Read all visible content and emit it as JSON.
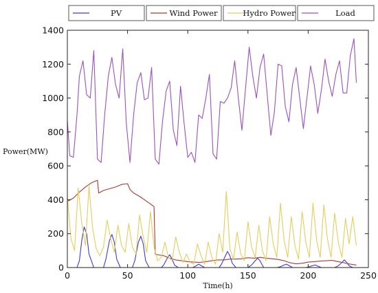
{
  "chart_data": {
    "type": "line",
    "title": "",
    "xlabel": "Time(h)",
    "ylabel": "Power(MW)",
    "xlim": [
      0,
      250
    ],
    "ylim": [
      0,
      1400
    ],
    "xticks": [
      0,
      50,
      100,
      150,
      200,
      250
    ],
    "yticks": [
      0,
      200,
      400,
      600,
      800,
      1000,
      1200,
      1400
    ],
    "legend_position": "top",
    "grid": false,
    "series": [
      {
        "name": "PV",
        "color": "#3a3ad6",
        "x": [
          0,
          8,
          10,
          12,
          14,
          16,
          18,
          22,
          30,
          32,
          35,
          37,
          39,
          41,
          44,
          54,
          56,
          59,
          61,
          63,
          65,
          68,
          78,
          80,
          83,
          85,
          87,
          89,
          92,
          104,
          107,
          109,
          111,
          114,
          126,
          128,
          131,
          133,
          135,
          137,
          140,
          150,
          153,
          156,
          158,
          160,
          163,
          174,
          177,
          180,
          182,
          184,
          187,
          198,
          201,
          204,
          206,
          208,
          211,
          222,
          225,
          228,
          230,
          232,
          234,
          237,
          240
        ],
        "y": [
          0,
          0,
          40,
          160,
          240,
          200,
          80,
          0,
          0,
          50,
          160,
          195,
          150,
          50,
          0,
          0,
          40,
          150,
          185,
          140,
          40,
          0,
          0,
          15,
          55,
          75,
          50,
          15,
          0,
          0,
          10,
          20,
          12,
          0,
          0,
          20,
          65,
          95,
          70,
          25,
          0,
          0,
          15,
          40,
          55,
          40,
          0,
          0,
          5,
          15,
          20,
          12,
          0,
          0,
          5,
          12,
          15,
          8,
          0,
          0,
          10,
          30,
          45,
          30,
          10,
          0,
          0
        ]
      },
      {
        "name": "Wind Power",
        "color": "#a83a2e",
        "x": [
          0,
          5,
          10,
          15,
          20,
          25,
          26,
          30,
          35,
          40,
          45,
          50,
          52,
          55,
          60,
          65,
          70,
          72,
          73,
          75,
          80,
          85,
          90,
          95,
          100,
          105,
          110,
          115,
          120,
          125,
          130,
          135,
          140,
          145,
          150,
          155,
          160,
          165,
          170,
          175,
          180,
          185,
          190,
          195,
          200,
          205,
          210,
          215,
          220,
          225,
          230,
          235,
          240
        ],
        "y": [
          390,
          410,
          445,
          475,
          500,
          515,
          440,
          455,
          465,
          475,
          490,
          495,
          460,
          440,
          420,
          395,
          370,
          360,
          80,
          75,
          70,
          55,
          45,
          40,
          35,
          32,
          30,
          35,
          40,
          45,
          45,
          50,
          50,
          52,
          58,
          55,
          60,
          55,
          52,
          48,
          40,
          28,
          22,
          25,
          32,
          35,
          38,
          40,
          42,
          35,
          28,
          20,
          15
        ]
      },
      {
        "name": "Hydro Power",
        "color": "#e6cc5a",
        "x": [
          0,
          3,
          6,
          9,
          12,
          15,
          18,
          21,
          24,
          27,
          30,
          33,
          36,
          39,
          42,
          45,
          48,
          51,
          54,
          57,
          60,
          63,
          66,
          69,
          72,
          75,
          78,
          81,
          84,
          87,
          90,
          93,
          96,
          99,
          102,
          105,
          108,
          111,
          114,
          117,
          120,
          123,
          126,
          129,
          132,
          135,
          138,
          141,
          144,
          147,
          150,
          153,
          156,
          159,
          162,
          165,
          168,
          171,
          174,
          177,
          180,
          183,
          186,
          189,
          192,
          195,
          198,
          201,
          204,
          207,
          210,
          213,
          216,
          219,
          222,
          225,
          228,
          231,
          234,
          237,
          240
        ],
        "y": [
          420,
          170,
          100,
          470,
          260,
          130,
          480,
          230,
          110,
          70,
          120,
          280,
          170,
          90,
          250,
          130,
          90,
          260,
          120,
          80,
          310,
          180,
          90,
          330,
          120,
          40,
          60,
          150,
          60,
          40,
          180,
          90,
          30,
          80,
          30,
          20,
          140,
          70,
          20,
          150,
          60,
          20,
          200,
          90,
          450,
          110,
          50,
          210,
          80,
          40,
          270,
          120,
          60,
          250,
          100,
          40,
          300,
          140,
          60,
          380,
          160,
          60,
          300,
          130,
          50,
          330,
          150,
          60,
          380,
          160,
          60,
          370,
          170,
          60,
          320,
          150,
          60,
          290,
          140,
          300,
          130
        ]
      },
      {
        "name": "Load",
        "color": "#9b4fc0",
        "x": [
          0,
          2,
          5,
          8,
          10,
          13,
          16,
          19,
          22,
          25,
          28,
          31,
          34,
          37,
          40,
          43,
          46,
          49,
          52,
          55,
          58,
          61,
          64,
          67,
          70,
          73,
          76,
          79,
          82,
          85,
          88,
          91,
          94,
          97,
          100,
          103,
          106,
          109,
          112,
          115,
          118,
          121,
          124,
          127,
          130,
          133,
          136,
          139,
          142,
          145,
          148,
          151,
          154,
          157,
          160,
          163,
          166,
          169,
          172,
          175,
          178,
          181,
          184,
          187,
          190,
          193,
          196,
          199,
          202,
          205,
          208,
          211,
          214,
          217,
          220,
          223,
          226,
          229,
          232,
          235,
          238,
          240
        ],
        "y": [
          870,
          660,
          650,
          900,
          1130,
          1220,
          1020,
          1000,
          1280,
          640,
          620,
          900,
          1130,
          1240,
          1080,
          1000,
          1290,
          850,
          620,
          900,
          1090,
          1150,
          990,
          1000,
          1180,
          640,
          610,
          860,
          1040,
          1100,
          810,
          720,
          1070,
          850,
          650,
          680,
          620,
          900,
          880,
          1000,
          1140,
          670,
          640,
          980,
          970,
          1000,
          1060,
          1220,
          1000,
          810,
          1060,
          1300,
          1130,
          1000,
          1180,
          1260,
          1020,
          780,
          920,
          1200,
          1190,
          950,
          860,
          1080,
          1180,
          1000,
          820,
          1000,
          1190,
          1080,
          910,
          1050,
          1230,
          1100,
          1010,
          1140,
          1220,
          1030,
          1030,
          1250,
          1350,
          1090
        ]
      }
    ]
  }
}
